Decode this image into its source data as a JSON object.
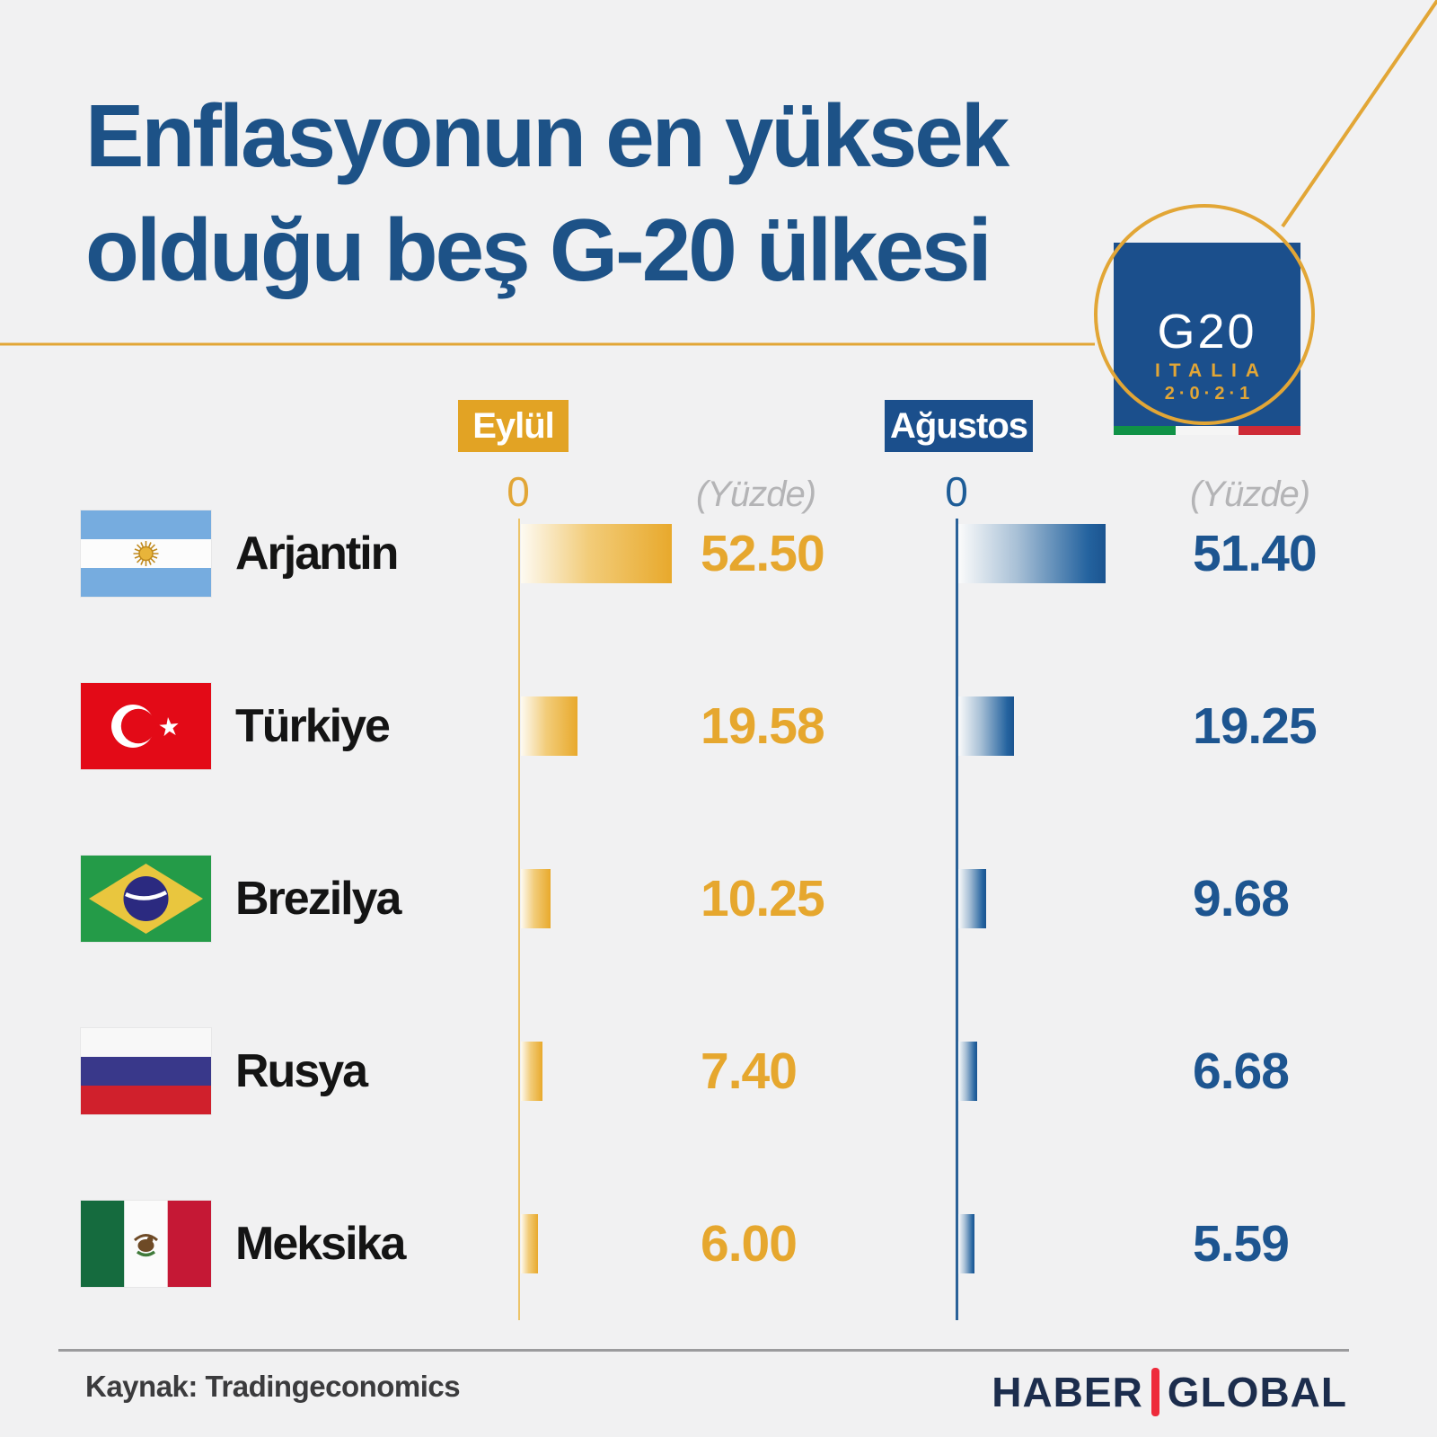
{
  "title": {
    "line1": "Enflasyonun en yüksek",
    "line2": "olduğu beş G-20 ülkesi"
  },
  "logo": {
    "g20": "G20",
    "italia": "ITALIA",
    "year": "2·0·2·1"
  },
  "legend": {
    "eylul": "Eylül",
    "agustos": "Ağustos"
  },
  "axis": {
    "eylul_zero": "0",
    "agustos_zero": "0",
    "eylul_unit": "(Yüzde)",
    "agustos_unit": "(Yüzde)"
  },
  "colors": {
    "gold": "#e2a324",
    "blue": "#1b4f8c",
    "background": "#f1f1f2",
    "title_blue": "#1d5287"
  },
  "chart_data": {
    "type": "bar",
    "title": "Enflasyonun en yüksek olduğu beş G-20 ülkesi",
    "unit": "Yüzde",
    "categories": [
      "Arjantin",
      "Türkiye",
      "Brezilya",
      "Rusya",
      "Meksika"
    ],
    "series": [
      {
        "name": "Eylül",
        "color": "#e2a324",
        "values": [
          52.5,
          19.58,
          10.25,
          7.4,
          6.0
        ]
      },
      {
        "name": "Ağustos",
        "color": "#1b4f8c",
        "values": [
          51.4,
          19.25,
          9.68,
          6.68,
          5.59
        ]
      }
    ],
    "axis_start": 0,
    "legend_position": "top",
    "grid": false
  },
  "rows": [
    {
      "country": "Arjantin",
      "eylul": "52.50",
      "agustos": "51.40"
    },
    {
      "country": "Türkiye",
      "eylul": "19.58",
      "agustos": "19.25"
    },
    {
      "country": "Brezilya",
      "eylul": "10.25",
      "agustos": "9.68"
    },
    {
      "country": "Rusya",
      "eylul": "7.40",
      "agustos": "6.68"
    },
    {
      "country": "Meksika",
      "eylul": "6.00",
      "agustos": "5.59"
    }
  ],
  "footer": {
    "source": "Kaynak: Tradingeconomics",
    "brand_left": "HABER",
    "brand_right": "GLOBAL"
  }
}
